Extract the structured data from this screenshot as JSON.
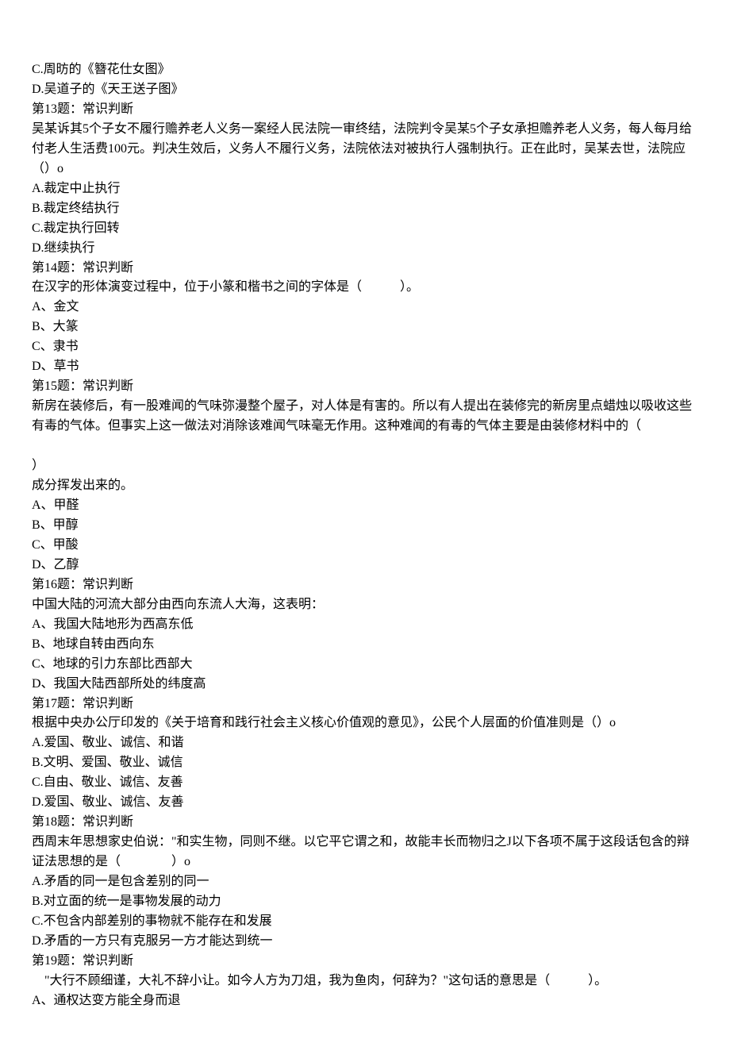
{
  "lines": [
    "C.周昉的《簪花仕女图》",
    "D.吴道子的《天王送子图》",
    "第13题：常识判断",
    "吴某诉其5个子女不履行赡养老人义务一案经人民法院一审终结，法院判令吴某5个子女承担赡养老人义务，每人每月给付老人生活费100元。判决生效后，义务人不履行义务，法院依法对被执行人强制执行。正在此时，吴某去世，法院应（）o",
    "A.裁定中止执行",
    "B.裁定终结执行",
    "C.裁定执行回转",
    "D.继续执行",
    "第14题：常识判断",
    "在汉字的形体演变过程中，位于小篆和楷书之间的字体是（　　　）。",
    "A、金文",
    "B、大篆",
    "C、隶书",
    "D、草书",
    "第15题：常识判断",
    "新房在装修后，有一股难闻的气味弥漫整个屋子，对人体是有害的。所以有人提出在装修完的新房里点蜡烛以吸收这些有毒的气体。但事实上这一做法对消除该难闻气味毫无作用。这种难闻的有毒的气体主要是由装修材料中的（",
    "",
    "）",
    "成分挥发出来的。",
    "A、甲醛",
    "B、甲醇",
    "C、甲酸",
    "D、乙醇",
    "第16题：常识判断",
    "中国大陆的河流大部分由西向东流人大海，这表明：",
    "A、我国大陆地形为西高东低",
    "B、地球自转由西向东",
    "C、地球的引力东部比西部大",
    "D、我国大陆西部所处的纬度高",
    "第17题：常识判断",
    "根据中央办公厅印发的《关于培育和践行社会主义核心价值观的意见》，公民个人层面的价值准则是（）o",
    "A.爱国、敬业、诚信、和谐",
    "B.文明、爱国、敬业、诚信",
    "C.自由、敬业、诚信、友善",
    "D.爱国、敬业、诚信、友善",
    "第18题：常识判断",
    "西周末年思想家史伯说：\"和实生物，同则不继。以它平它谓之和，故能丰长而物归之J以下各项不属于这段话包含的辩证法思想的是（　　　　）o",
    "A.矛盾的同一是包含差别的同一",
    "B.对立面的统一是事物发展的动力",
    "C.不包含内部差别的事物就不能存在和发展",
    "D.矛盾的一方只有克服另一方才能达到统一",
    "第19题：常识判断",
    "　\"大行不顾细谨，大礼不辞小让。如今人方为刀俎，我为鱼肉，何辞为？\"这句话的意思是（　　　）。",
    "A、通权达变方能全身而退"
  ]
}
